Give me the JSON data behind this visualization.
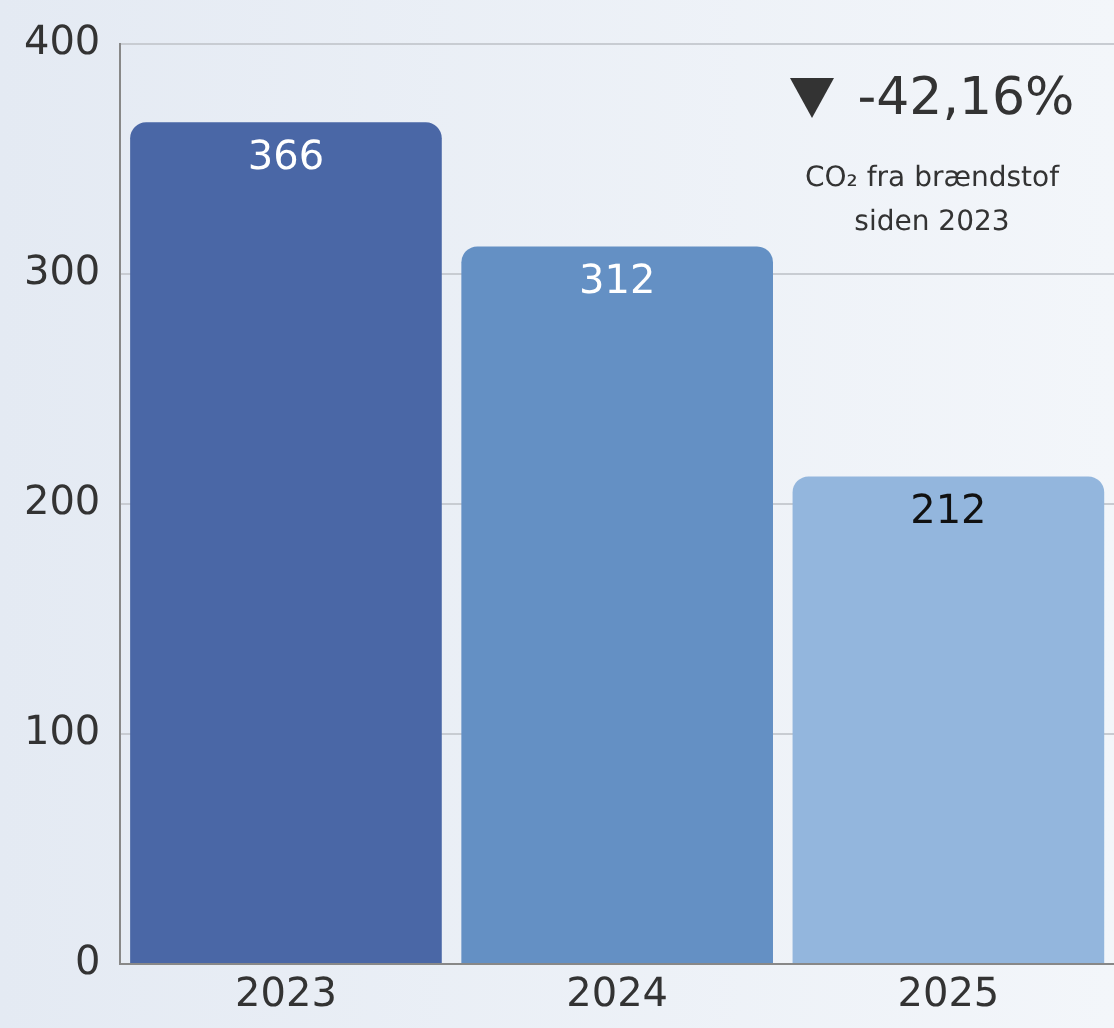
{
  "chart_data": {
    "type": "bar",
    "categories": [
      "2023",
      "2024",
      "2025"
    ],
    "values": [
      366,
      312,
      212
    ],
    "colors": [
      "#4a67a6",
      "#6490c4",
      "#93b6dd"
    ],
    "ylim": [
      0,
      400
    ],
    "yticks": [
      0,
      100,
      200,
      300,
      400
    ],
    "grid": "y",
    "data_labels": true,
    "annotations": [
      "-42,16%",
      "CO₂ fra brændstof siden 2023"
    ]
  }
}
